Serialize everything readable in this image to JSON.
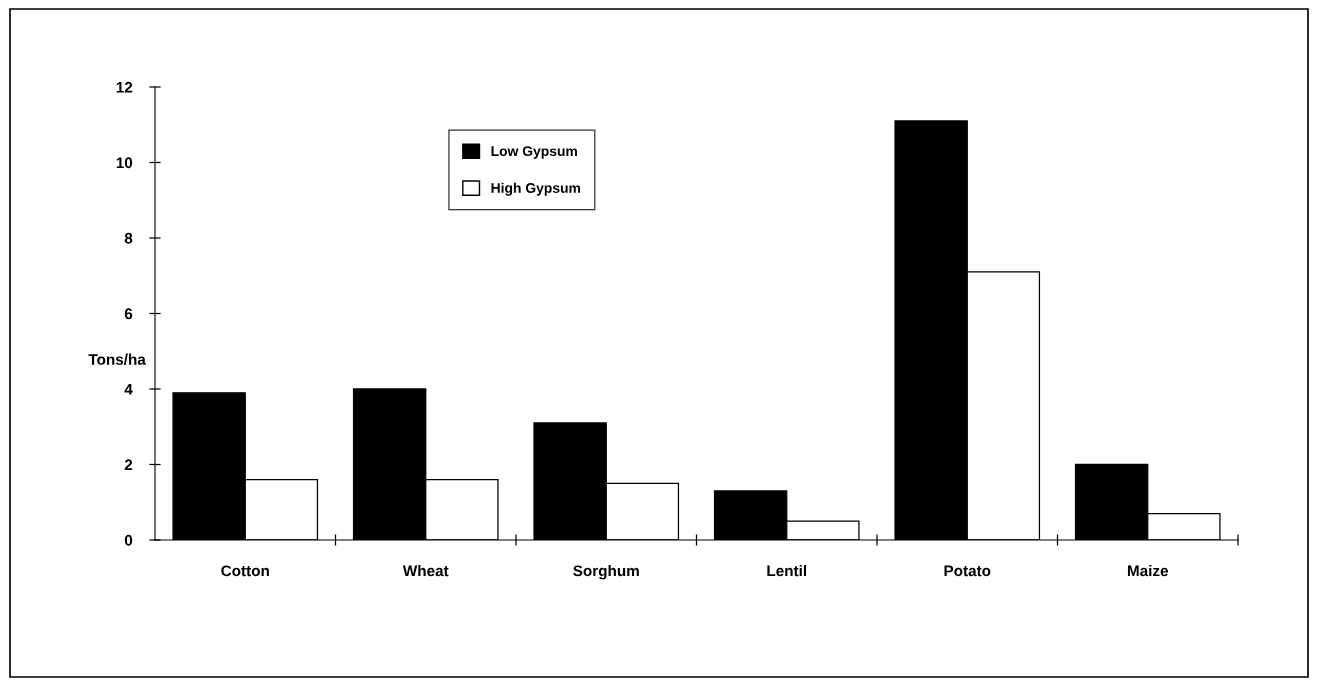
{
  "chart_data": {
    "type": "bar",
    "ylabel": "Tons/ha",
    "categories": [
      "Cotton",
      "Wheat",
      "Sorghum",
      "Lentil",
      "Potato",
      "Maize"
    ],
    "series": [
      {
        "name": "Low Gypsum",
        "color": "#000000",
        "values": [
          3.9,
          4.0,
          3.1,
          1.3,
          11.1,
          2.0
        ]
      },
      {
        "name": "High Gypsum",
        "color": "#ffffff",
        "values": [
          1.6,
          1.6,
          1.5,
          0.5,
          7.1,
          0.7
        ]
      }
    ],
    "ylim": [
      0,
      12
    ],
    "yticks": [
      0,
      2,
      4,
      6,
      8,
      10,
      12
    ],
    "grid": false,
    "legend": "top left"
  }
}
